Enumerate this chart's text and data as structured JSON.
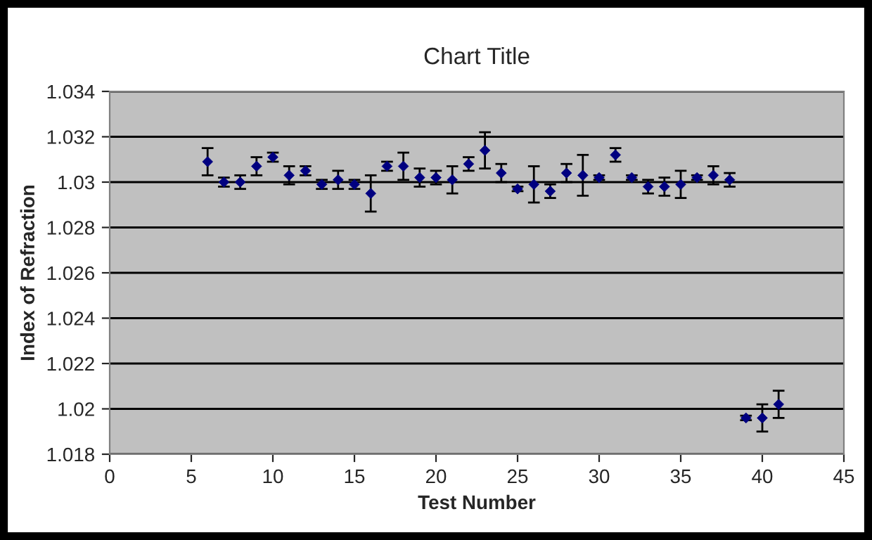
{
  "chart_data": {
    "type": "scatter",
    "title": "Chart Title",
    "xlabel": "Test Number",
    "ylabel": "Index of Refraction",
    "x": [
      6,
      7,
      8,
      9,
      10,
      11,
      12,
      13,
      14,
      15,
      16,
      17,
      18,
      19,
      20,
      21,
      22,
      23,
      24,
      25,
      26,
      27,
      28,
      29,
      30,
      31,
      32,
      33,
      34,
      35,
      36,
      37,
      38,
      39,
      40,
      41
    ],
    "series": [
      {
        "color": "#000080",
        "values": [
          1.0309,
          1.03,
          1.03,
          1.0307,
          1.0311,
          1.0303,
          1.0305,
          1.0299,
          1.0301,
          1.0299,
          1.0295,
          1.0307,
          1.0307,
          1.0302,
          1.0302,
          1.0301,
          1.0308,
          1.0314,
          1.0304,
          1.0297,
          1.0299,
          1.0296,
          1.0304,
          1.0303,
          1.0302,
          1.0312,
          1.0302,
          1.0298,
          1.0298,
          1.0299,
          1.0302,
          1.0303,
          1.0301,
          1.0196,
          1.0196,
          1.0202
        ],
        "errors": [
          0.0006,
          0.0002,
          0.0003,
          0.0004,
          0.0002,
          0.0004,
          0.0002,
          0.0002,
          0.0004,
          0.0002,
          0.0008,
          0.0002,
          0.0006,
          0.0004,
          0.0003,
          0.0006,
          0.0003,
          0.0008,
          0.0004,
          0.0001,
          0.0008,
          0.0003,
          0.0004,
          0.0009,
          0.0001,
          0.0003,
          0.0001,
          0.0003,
          0.0004,
          0.0006,
          0.0001,
          0.0004,
          0.0003,
          0.0001,
          0.0006,
          0.0006
        ]
      }
    ],
    "xlim": [
      0,
      45
    ],
    "xticks": [
      0,
      5,
      10,
      15,
      20,
      25,
      30,
      35,
      40,
      45
    ],
    "ylim": [
      1.018,
      1.034
    ],
    "yticks": [
      1.018,
      1.02,
      1.022,
      1.024,
      1.026,
      1.028,
      1.03,
      1.032,
      1.034
    ],
    "grid": "y",
    "marker": "diamond",
    "legend": false
  }
}
